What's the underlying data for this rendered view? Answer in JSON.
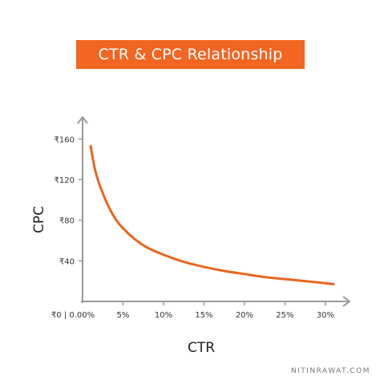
{
  "colors": {
    "accent": "#f26522",
    "curve": "#e9661f",
    "axis": "#9a9a9a"
  },
  "watermark": "NITINRAWAT.COM",
  "chart_data": {
    "type": "line",
    "title": "CTR & CPC Relationship",
    "xlabel": "CTR",
    "ylabel": "CPC",
    "xlim": [
      0,
      31
    ],
    "ylim": [
      0,
      180
    ],
    "origin_label": "₹0 | 0.00%",
    "x_ticks": [
      {
        "value": 5,
        "label": "5%"
      },
      {
        "value": 10,
        "label": "10%"
      },
      {
        "value": 15,
        "label": "15%"
      },
      {
        "value": 20,
        "label": "20%"
      },
      {
        "value": 25,
        "label": "25%"
      },
      {
        "value": 30,
        "label": "30%"
      }
    ],
    "y_ticks": [
      {
        "value": 40,
        "label": "₹40"
      },
      {
        "value": 80,
        "label": "₹80"
      },
      {
        "value": 120,
        "label": "₹120"
      },
      {
        "value": 160,
        "label": "₹160"
      }
    ],
    "grid": false,
    "legend": "none",
    "series": [
      {
        "x": [
          1.0,
          1.5,
          2.0,
          3.0,
          4.0,
          5.0,
          6.5,
          8.0,
          10.0,
          12.5,
          15.0,
          17.5,
          20.0,
          22.5,
          25.0,
          27.5,
          30.0,
          31.0
        ],
        "y": [
          153,
          131,
          117,
          97,
          82,
          72,
          61,
          53,
          46,
          39,
          34,
          30,
          27,
          24,
          22,
          20,
          18,
          17
        ]
      }
    ]
  }
}
